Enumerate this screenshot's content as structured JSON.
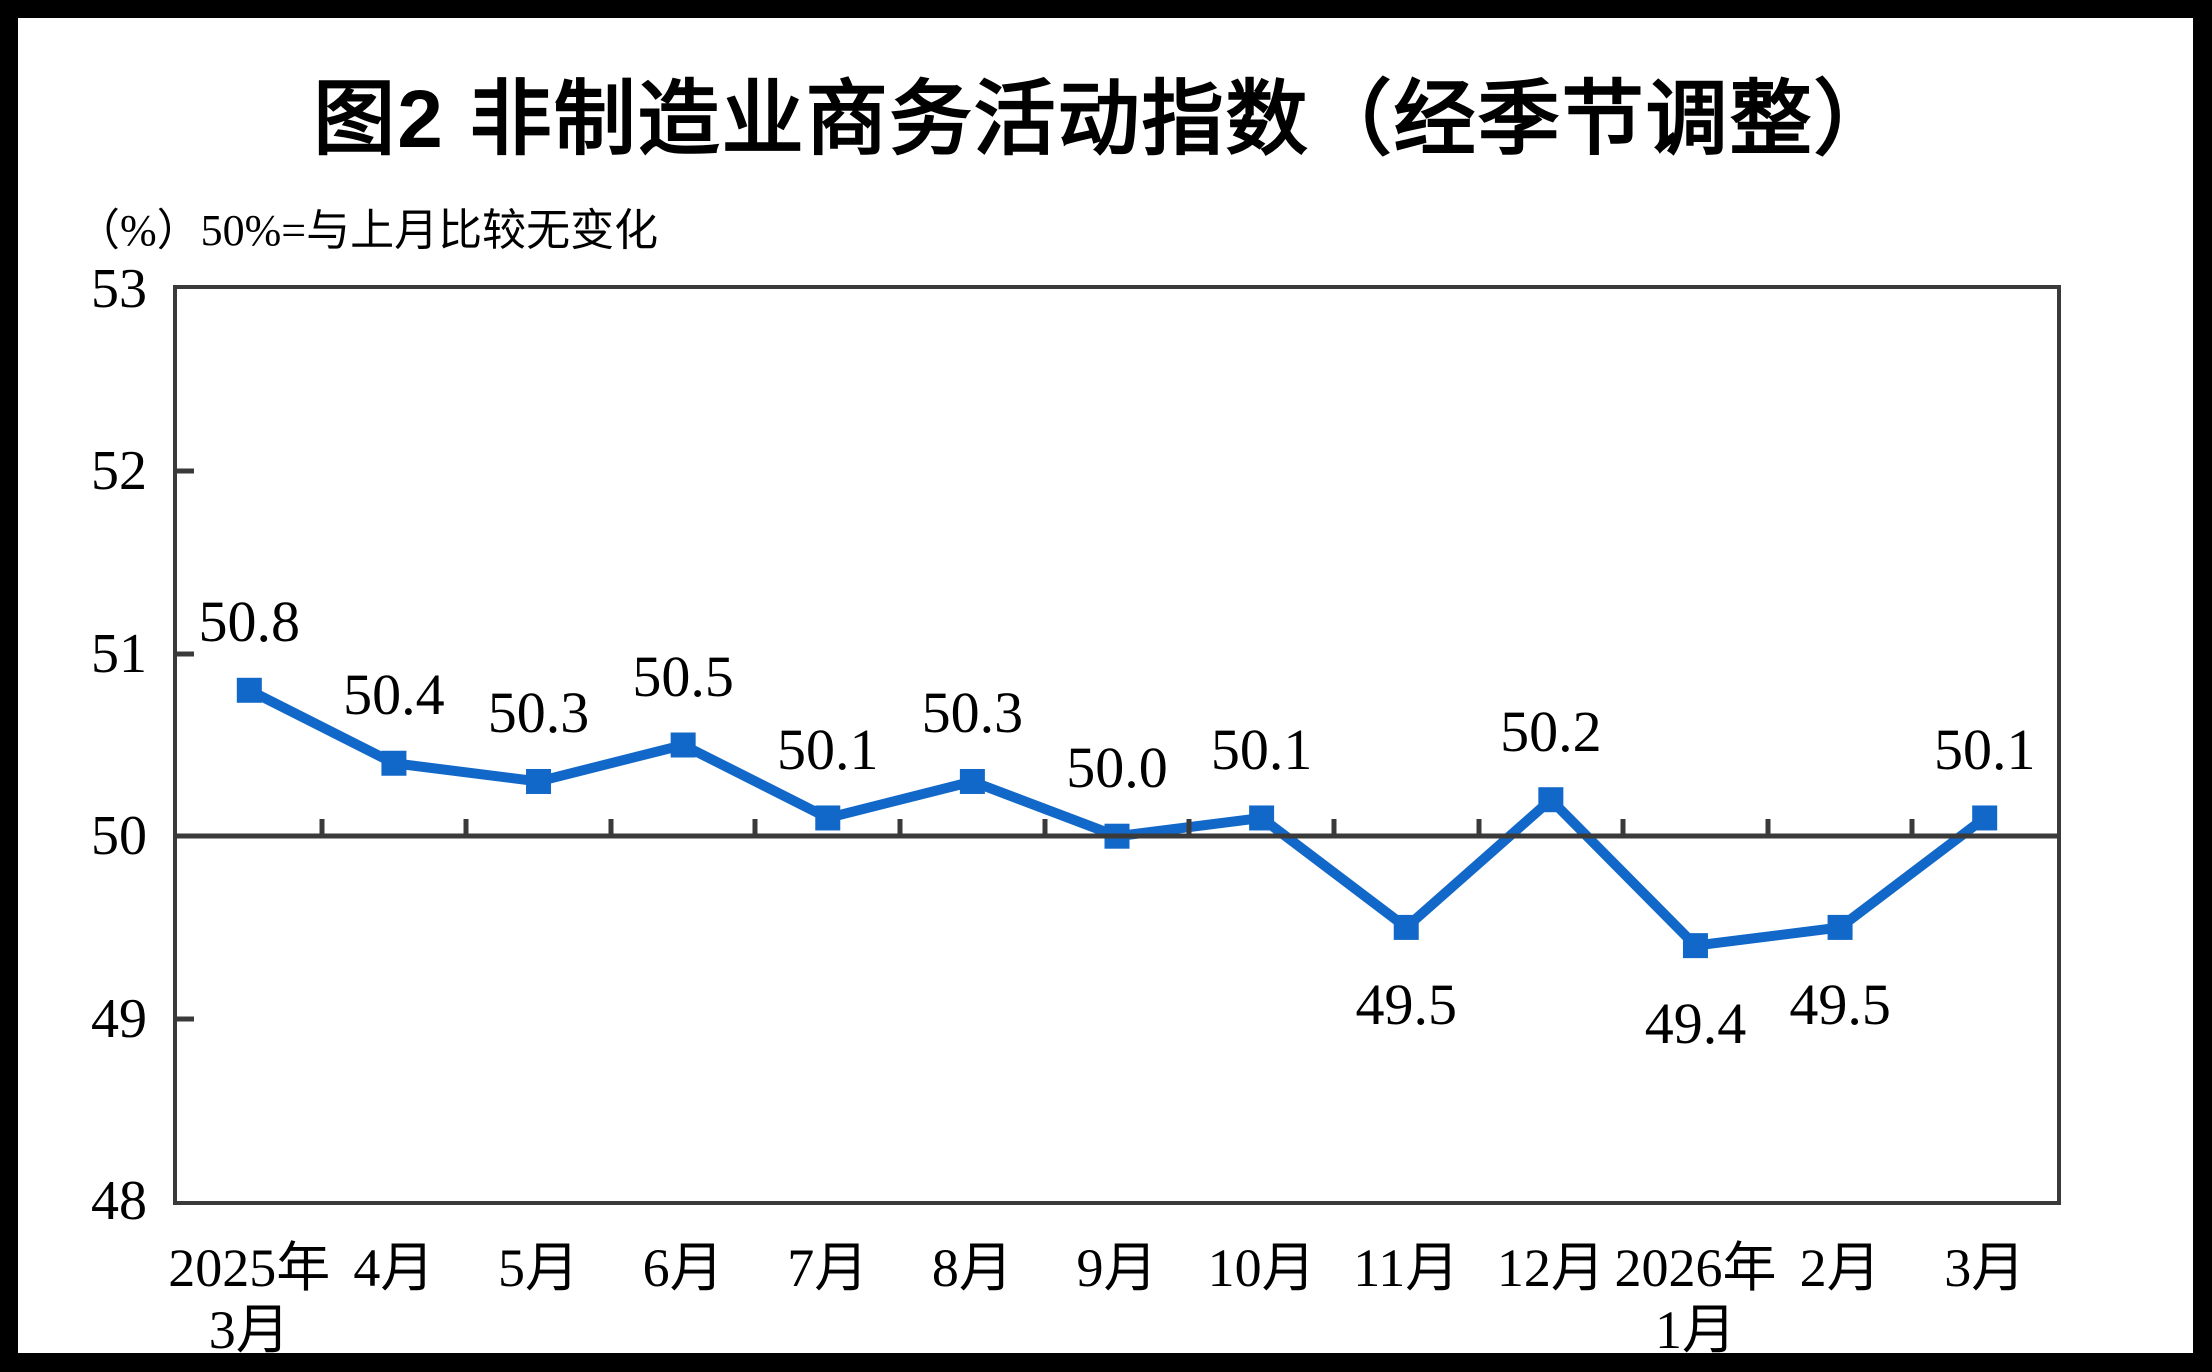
{
  "chart_data": {
    "type": "line",
    "title": "图2 非制造业商务活动指数（经季节调整）",
    "unit_note": "（%）50%=与上月比较无变化",
    "categories": [
      [
        "2025年",
        "3月"
      ],
      [
        "4月"
      ],
      [
        "5月"
      ],
      [
        "6月"
      ],
      [
        "7月"
      ],
      [
        "8月"
      ],
      [
        "9月"
      ],
      [
        "10月"
      ],
      [
        "11月"
      ],
      [
        "12月"
      ],
      [
        "2026年",
        "1月"
      ],
      [
        "2月"
      ],
      [
        "3月"
      ]
    ],
    "values": [
      50.8,
      50.4,
      50.3,
      50.5,
      50.1,
      50.3,
      50.0,
      50.1,
      49.5,
      50.2,
      49.4,
      49.5,
      50.1
    ],
    "ylim": [
      48,
      53
    ],
    "y_ticks": [
      53,
      52,
      51,
      50,
      49,
      48
    ],
    "reference_line": 50,
    "grid": false,
    "legend": "none",
    "marker": "square",
    "colors": {
      "line": "#1268c8",
      "axis": "#3a3a3a",
      "text": "#000000",
      "background": "#ffffff",
      "frame": "#000000"
    }
  }
}
